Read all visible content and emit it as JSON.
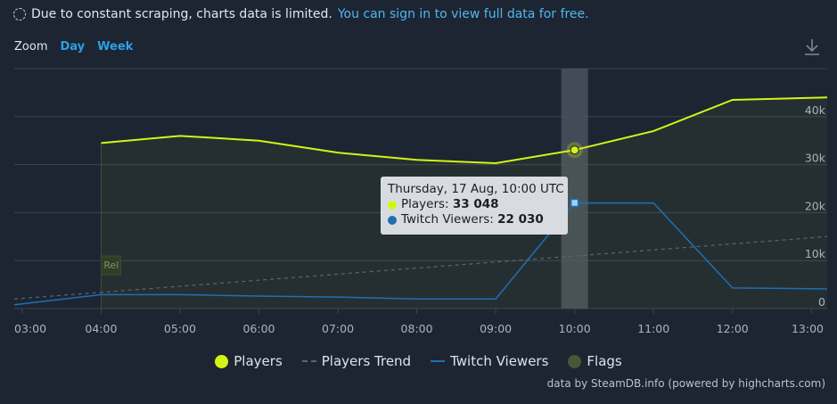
{
  "notice": {
    "text": "Due to constant scraping, charts data is limited.",
    "link": "You can sign in to view full data for free."
  },
  "zoom": {
    "label": "Zoom",
    "buttons": [
      "Day",
      "Week"
    ]
  },
  "credit": "data by SteamDB.info (powered by highcharts.com)",
  "legend": [
    "Players",
    "Players Trend",
    "Twitch Viewers",
    "Flags"
  ],
  "flag_label": "Rel",
  "tooltip": {
    "title": "Thursday, 17 Aug, 10:00 UTC",
    "players_label": "Players: ",
    "players_value": "33 048",
    "twitch_label": "Twitch Viewers: ",
    "twitch_value": "22 030"
  },
  "colors": {
    "players": "#d4f514",
    "trend": "#5a6572",
    "twitch": "#1f6fb2",
    "flags": "#4b5636",
    "link": "#4fb6f0"
  },
  "chart_data": {
    "type": "line",
    "x": [
      "04:00",
      "05:00",
      "06:00",
      "07:00",
      "08:00",
      "09:00",
      "10:00",
      "11:00",
      "12:00",
      "13:00"
    ],
    "x_ticks": [
      "03:00",
      "04:00",
      "05:00",
      "06:00",
      "07:00",
      "08:00",
      "09:00",
      "10:00",
      "11:00",
      "12:00",
      "13:00"
    ],
    "x_range": [
      2.9,
      13.2
    ],
    "y_ticks": [
      "0",
      "10k",
      "20k",
      "30k",
      "40k"
    ],
    "ylim": [
      0,
      50000
    ],
    "series": [
      {
        "name": "Players",
        "x": [
          4,
          5,
          6,
          7,
          8,
          9,
          10,
          11,
          12,
          13.2
        ],
        "values": [
          34500,
          36000,
          35000,
          32500,
          31000,
          30300,
          33048,
          37000,
          43500,
          44000
        ]
      },
      {
        "name": "Players Trend",
        "x": [
          2.9,
          13.2
        ],
        "values": [
          2000,
          15000
        ]
      },
      {
        "name": "Twitch Viewers",
        "x": [
          2.9,
          4,
          5,
          6,
          7,
          8,
          9,
          10,
          11,
          12,
          13.2
        ],
        "values": [
          800,
          2900,
          2900,
          2600,
          2400,
          2000,
          2000,
          22030,
          22000,
          4300,
          4100
        ]
      }
    ],
    "highlight_x": 10,
    "flag_x": 4,
    "grid": true
  }
}
